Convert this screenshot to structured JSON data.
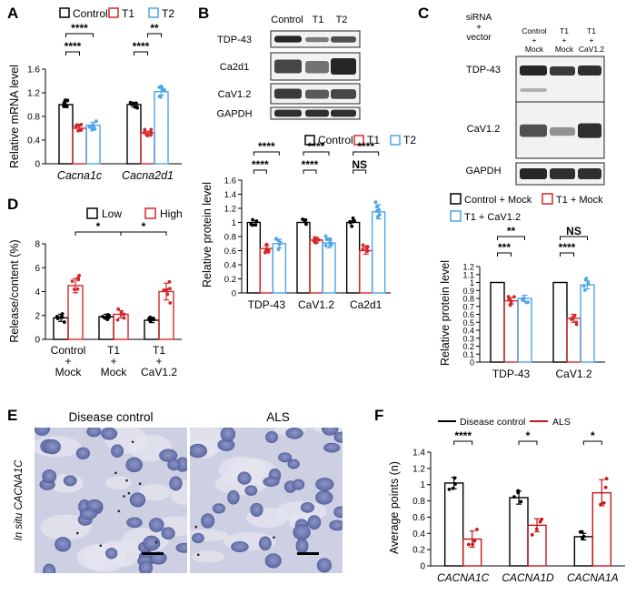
{
  "colors": {
    "control": "#000000",
    "t1": "#d62728",
    "t2": "#4da6e8",
    "ald": "#c4161c"
  },
  "panels": {
    "A": {
      "label": "A",
      "legend": [
        "Control",
        "T1",
        "T2"
      ],
      "ylabel": "Relative  mRNA level",
      "sig": [
        "****",
        "****",
        "****",
        "**"
      ]
    },
    "B": {
      "label": "B",
      "lanes": [
        "Control",
        "T1",
        "T2"
      ],
      "blots": [
        "TDP-43",
        "Ca2d1",
        "CaV1.2",
        "GAPDH"
      ],
      "legend": [
        "Control",
        "T1",
        "T2"
      ],
      "ylabel": "Relative protein level",
      "sig": [
        "****",
        "****",
        "****",
        "****",
        "****",
        "NS"
      ]
    },
    "C": {
      "label": "C",
      "header": [
        "siRNA",
        "+",
        "vector"
      ],
      "lanes": [
        [
          "Control",
          "+",
          "Mock"
        ],
        [
          "T1",
          "+",
          "Mock"
        ],
        [
          "T1",
          "+",
          "CaV1.2"
        ]
      ],
      "blots": [
        "TDP-43",
        "CaV1.2",
        "GAPDH"
      ],
      "legend": [
        "Control + Mock",
        "T1 + Mock",
        "T1 + CaV1.2"
      ],
      "ylabel": "Relative protein level",
      "sig": [
        "**",
        "***",
        "NS",
        "****"
      ]
    },
    "D": {
      "label": "D",
      "legend": [
        "Low",
        "High"
      ],
      "ylabel": "Release/content (%)",
      "xlabels": [
        [
          "Control",
          "+",
          "Mock"
        ],
        [
          "T1",
          "+",
          "Mock"
        ],
        [
          "T1",
          "+",
          "CaV1.2"
        ]
      ],
      "sig": [
        "*",
        "*"
      ]
    },
    "E": {
      "label": "E",
      "titles": [
        "Disease control",
        "ALS"
      ],
      "ylabel": "In situ CACNA1C"
    },
    "F": {
      "label": "F",
      "legend": [
        "Disease control",
        "ALS"
      ],
      "ylabel": "Average points (n)",
      "sig": [
        "****",
        "*",
        "*"
      ]
    }
  },
  "chart_data": [
    {
      "panel": "A",
      "type": "bar",
      "categories": [
        "Cacna1c",
        "Cacna2d1"
      ],
      "series": [
        {
          "name": "Control",
          "values": [
            1.0,
            1.0
          ],
          "errors": [
            0.05,
            0.04
          ]
        },
        {
          "name": "T1",
          "values": [
            0.6,
            0.52
          ],
          "errors": [
            0.05,
            0.03
          ]
        },
        {
          "name": "T2",
          "values": [
            0.65,
            1.22
          ],
          "errors": [
            0.05,
            0.06
          ]
        }
      ],
      "ylim": [
        0,
        1.6
      ],
      "yticks": [
        "0",
        "0.4",
        "0.8",
        "1.2",
        "1.6"
      ]
    },
    {
      "panel": "B",
      "type": "bar",
      "categories": [
        "TDP-43",
        "CaV1.2",
        "Ca2d1"
      ],
      "series": [
        {
          "name": "Control",
          "values": [
            1.0,
            1.0,
            1.0
          ],
          "errors": [
            0,
            0,
            0
          ]
        },
        {
          "name": "T1",
          "values": [
            0.63,
            0.75,
            0.6
          ],
          "errors": [
            0.04,
            0.04,
            0.05
          ]
        },
        {
          "name": "T2",
          "values": [
            0.7,
            0.71,
            1.15
          ],
          "errors": [
            0.06,
            0.07,
            0.1
          ]
        }
      ],
      "ylim": [
        0,
        1.6
      ],
      "yticks": [
        "0",
        "0.2",
        "0.4",
        "0.6",
        "0.8",
        "1",
        "1.2",
        "1.4",
        "1.6"
      ]
    },
    {
      "panel": "C",
      "type": "bar",
      "categories": [
        "TDP-43",
        "CaV1.2"
      ],
      "series": [
        {
          "name": "Control + Mock",
          "values": [
            1.0,
            1.0
          ],
          "errors": [
            0,
            0
          ]
        },
        {
          "name": "T1 + Mock",
          "values": [
            0.77,
            0.55
          ],
          "errors": [
            0.04,
            0.05
          ]
        },
        {
          "name": "T1 + CaV1.2",
          "values": [
            0.8,
            0.97
          ],
          "errors": [
            0.04,
            0.05
          ]
        }
      ],
      "ylim": [
        0,
        1.2
      ],
      "yticks": [
        "0",
        "0.1",
        "0.2",
        "0.3",
        "0.4",
        "0.5",
        "0.6",
        "0.7",
        "0.8",
        "0.9",
        "1",
        "1.1",
        "1.2"
      ]
    },
    {
      "panel": "D",
      "type": "bar",
      "categories": [
        "Control + Mock",
        "T1 + Mock",
        "T1 + CaV1.2"
      ],
      "series": [
        {
          "name": "Low",
          "values": [
            1.8,
            1.9,
            1.6
          ],
          "errors": [
            0.3,
            0.2,
            0.2
          ]
        },
        {
          "name": "High",
          "values": [
            4.5,
            2.1,
            4.0
          ],
          "errors": [
            0.6,
            0.3,
            0.7
          ]
        }
      ],
      "ylim": [
        0,
        8
      ],
      "yticks": [
        "0",
        "2",
        "4",
        "6",
        "8"
      ]
    },
    {
      "panel": "F",
      "type": "bar",
      "categories": [
        "CACNA1C",
        "CACNA1D",
        "CACNA1A"
      ],
      "series": [
        {
          "name": "Disease control",
          "values": [
            1.02,
            0.84,
            0.36
          ],
          "errors": [
            0.07,
            0.08,
            0.04
          ]
        },
        {
          "name": "ALS",
          "values": [
            0.33,
            0.5,
            0.9
          ],
          "errors": [
            0.1,
            0.08,
            0.16
          ]
        }
      ],
      "ylim": [
        0,
        1.4
      ],
      "yticks": [
        "0",
        "0.2",
        "0.4",
        "0.6",
        "0.8",
        "1",
        "1.2",
        "1.4"
      ]
    }
  ]
}
